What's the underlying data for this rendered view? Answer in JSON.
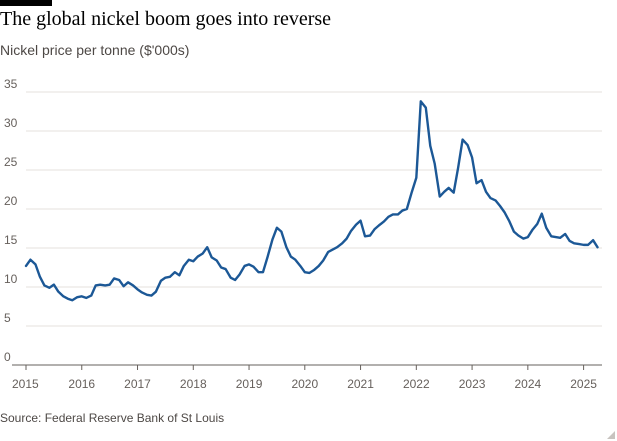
{
  "header": {
    "title": "The global nickel boom goes into reverse",
    "subtitle": "Nickel price per tonne ($'000s)"
  },
  "footer": {
    "source": "Source: Federal Reserve Bank of St Louis"
  },
  "colors": {
    "line": "#1c5896",
    "grid": "#e4e0dd",
    "axis": "#66605c"
  },
  "chart_data": {
    "type": "line",
    "title": "The global nickel boom goes into reverse",
    "subtitle": "Nickel price per tonne ($'000s)",
    "xlabel": "",
    "ylabel": "",
    "ylim": [
      0,
      35
    ],
    "xlim": [
      2015.0,
      2025.33
    ],
    "grid": true,
    "legend": "none",
    "yticks": [
      0,
      5,
      10,
      15,
      20,
      25,
      30,
      35
    ],
    "xticks": [
      2015,
      2016,
      2017,
      2018,
      2019,
      2020,
      2021,
      2022,
      2023,
      2024,
      2025
    ],
    "series": [
      {
        "points": [
          [
            2015.0,
            12.7
          ],
          [
            2015.08,
            13.5
          ],
          [
            2015.17,
            12.9
          ],
          [
            2015.25,
            11.3
          ],
          [
            2015.33,
            10.2
          ],
          [
            2015.42,
            9.9
          ],
          [
            2015.5,
            10.3
          ],
          [
            2015.58,
            9.4
          ],
          [
            2015.67,
            8.8
          ],
          [
            2015.75,
            8.5
          ],
          [
            2015.83,
            8.3
          ],
          [
            2015.92,
            8.7
          ],
          [
            2016.0,
            8.8
          ],
          [
            2016.08,
            8.6
          ],
          [
            2016.17,
            8.9
          ],
          [
            2016.25,
            10.2
          ],
          [
            2016.33,
            10.3
          ],
          [
            2016.42,
            10.2
          ],
          [
            2016.5,
            10.3
          ],
          [
            2016.58,
            11.1
          ],
          [
            2016.67,
            10.9
          ],
          [
            2016.75,
            10.1
          ],
          [
            2016.83,
            10.6
          ],
          [
            2016.92,
            10.2
          ],
          [
            2017.0,
            9.7
          ],
          [
            2017.08,
            9.3
          ],
          [
            2017.17,
            9.0
          ],
          [
            2017.25,
            8.9
          ],
          [
            2017.33,
            9.4
          ],
          [
            2017.42,
            10.8
          ],
          [
            2017.5,
            11.2
          ],
          [
            2017.58,
            11.3
          ],
          [
            2017.67,
            11.9
          ],
          [
            2017.75,
            11.5
          ],
          [
            2017.83,
            12.7
          ],
          [
            2017.92,
            13.5
          ],
          [
            2018.0,
            13.3
          ],
          [
            2018.08,
            13.9
          ],
          [
            2018.17,
            14.3
          ],
          [
            2018.25,
            15.1
          ],
          [
            2018.33,
            13.8
          ],
          [
            2018.42,
            13.4
          ],
          [
            2018.5,
            12.5
          ],
          [
            2018.58,
            12.3
          ],
          [
            2018.67,
            11.2
          ],
          [
            2018.75,
            10.9
          ],
          [
            2018.83,
            11.6
          ],
          [
            2018.92,
            12.7
          ],
          [
            2019.0,
            12.9
          ],
          [
            2019.08,
            12.6
          ],
          [
            2019.17,
            11.9
          ],
          [
            2019.25,
            11.9
          ],
          [
            2019.33,
            13.8
          ],
          [
            2019.42,
            16.1
          ],
          [
            2019.5,
            17.6
          ],
          [
            2019.58,
            17.1
          ],
          [
            2019.67,
            15.1
          ],
          [
            2019.75,
            13.9
          ],
          [
            2019.83,
            13.5
          ],
          [
            2019.92,
            12.7
          ],
          [
            2020.0,
            11.9
          ],
          [
            2020.08,
            11.8
          ],
          [
            2020.17,
            12.2
          ],
          [
            2020.25,
            12.7
          ],
          [
            2020.33,
            13.4
          ],
          [
            2020.42,
            14.5
          ],
          [
            2020.5,
            14.8
          ],
          [
            2020.58,
            15.1
          ],
          [
            2020.67,
            15.6
          ],
          [
            2020.75,
            16.2
          ],
          [
            2020.83,
            17.2
          ],
          [
            2020.92,
            18.0
          ],
          [
            2021.0,
            18.5
          ],
          [
            2021.08,
            16.5
          ],
          [
            2021.17,
            16.6
          ],
          [
            2021.25,
            17.4
          ],
          [
            2021.33,
            17.9
          ],
          [
            2021.42,
            18.4
          ],
          [
            2021.5,
            19.0
          ],
          [
            2021.58,
            19.3
          ],
          [
            2021.67,
            19.3
          ],
          [
            2021.75,
            19.8
          ],
          [
            2021.83,
            20.0
          ],
          [
            2021.92,
            22.2
          ],
          [
            2022.0,
            24.0
          ],
          [
            2022.08,
            33.8
          ],
          [
            2022.17,
            33.0
          ],
          [
            2022.25,
            28.1
          ],
          [
            2022.33,
            25.8
          ],
          [
            2022.42,
            21.6
          ],
          [
            2022.5,
            22.2
          ],
          [
            2022.58,
            22.7
          ],
          [
            2022.67,
            22.1
          ],
          [
            2022.75,
            25.3
          ],
          [
            2022.83,
            28.9
          ],
          [
            2022.92,
            28.2
          ],
          [
            2023.0,
            26.6
          ],
          [
            2023.08,
            23.3
          ],
          [
            2023.17,
            23.7
          ],
          [
            2023.25,
            22.2
          ],
          [
            2023.33,
            21.4
          ],
          [
            2023.42,
            21.1
          ],
          [
            2023.5,
            20.4
          ],
          [
            2023.58,
            19.6
          ],
          [
            2023.67,
            18.4
          ],
          [
            2023.75,
            17.1
          ],
          [
            2023.83,
            16.6
          ],
          [
            2023.92,
            16.2
          ],
          [
            2024.0,
            16.4
          ],
          [
            2024.08,
            17.3
          ],
          [
            2024.17,
            18.1
          ],
          [
            2024.25,
            19.4
          ],
          [
            2024.33,
            17.6
          ],
          [
            2024.42,
            16.5
          ],
          [
            2024.5,
            16.4
          ],
          [
            2024.58,
            16.3
          ],
          [
            2024.67,
            16.8
          ],
          [
            2024.75,
            15.9
          ],
          [
            2024.83,
            15.6
          ],
          [
            2024.92,
            15.5
          ],
          [
            2025.0,
            15.4
          ],
          [
            2025.08,
            15.4
          ],
          [
            2025.17,
            16.0
          ],
          [
            2025.25,
            15.1
          ]
        ]
      }
    ]
  }
}
